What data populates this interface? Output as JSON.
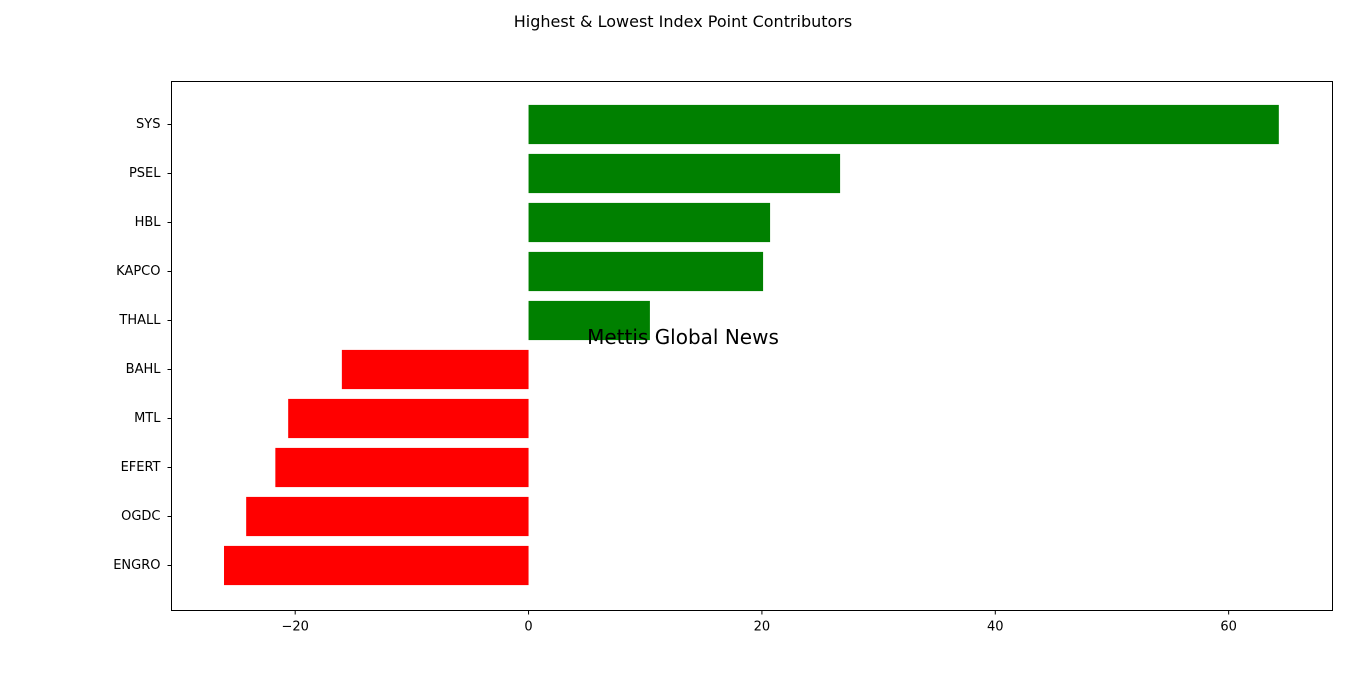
{
  "chart_data": {
    "type": "bar",
    "orientation": "horizontal",
    "title": "Highest & Lowest Index Point Contributors",
    "xlabel": "",
    "ylabel": "",
    "categories": [
      "SYS",
      "PSEL",
      "HBL",
      "KAPCO",
      "THALL",
      "BAHL",
      "MTL",
      "EFERT",
      "OGDC",
      "ENGRO"
    ],
    "values": [
      64.3,
      26.7,
      20.7,
      20.1,
      10.4,
      -16.0,
      -20.6,
      -21.7,
      -24.2,
      -26.1
    ],
    "xlim": [
      -30.6,
      68.9
    ],
    "xticks": [
      -20,
      0,
      20,
      40,
      60
    ],
    "xtick_labels": [
      "−20",
      "0",
      "20",
      "40",
      "60"
    ],
    "grid": false,
    "colors": {
      "positive": "#008000",
      "negative": "#ff0000"
    },
    "watermark": {
      "text": "Mettis Global News",
      "color": "#f2cf70"
    }
  }
}
